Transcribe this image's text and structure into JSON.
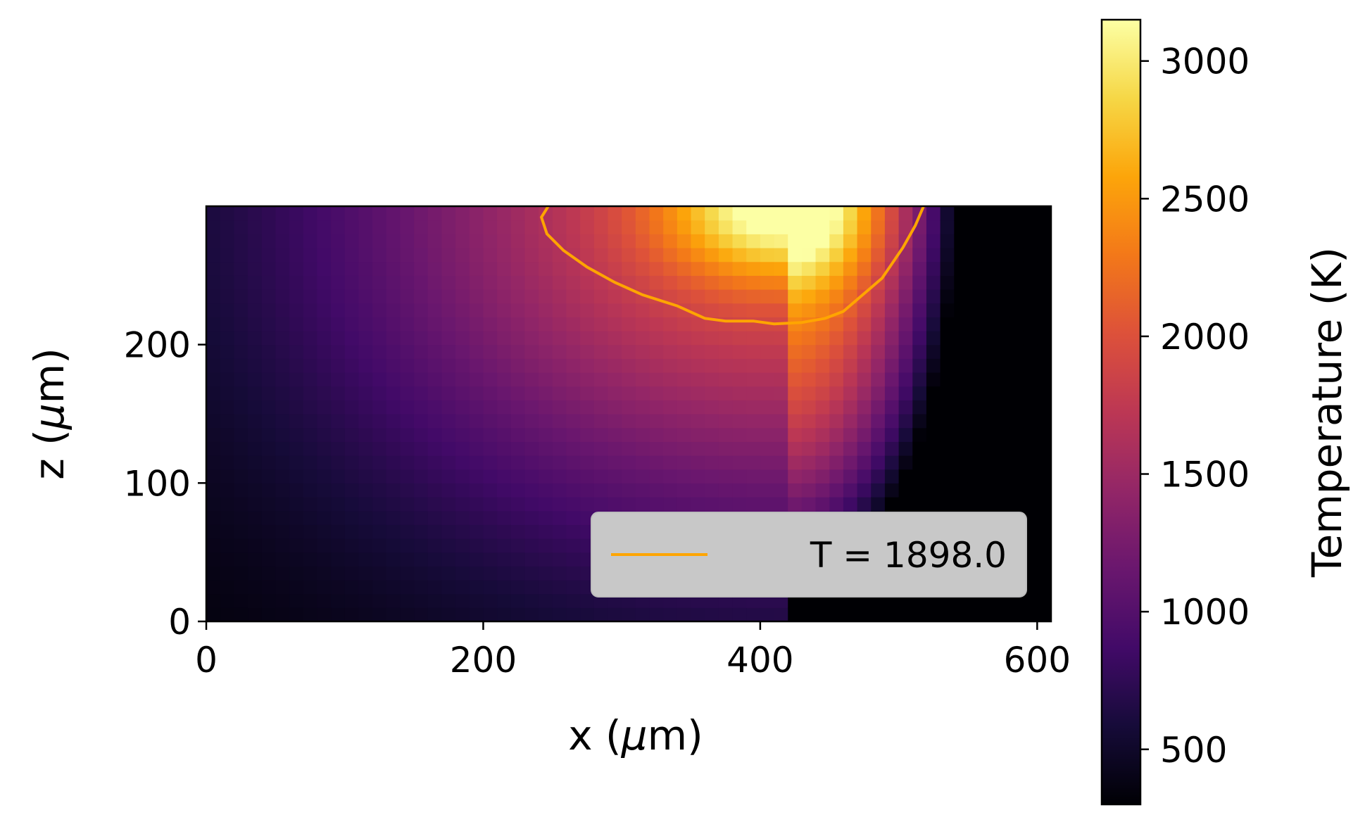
{
  "chart_data": {
    "type": "heatmap",
    "title": "",
    "xlabel_prefix": "x (",
    "xlabel_mu": "μ",
    "xlabel_suffix": "m)",
    "ylabel_prefix": "z (",
    "ylabel_mu": "μ",
    "ylabel_suffix": "m)",
    "xlim": [
      0,
      610
    ],
    "ylim": [
      0,
      300
    ],
    "x_ticks": [
      0,
      200,
      400,
      600
    ],
    "x_tick_labels": [
      "0",
      "200",
      "400",
      "600"
    ],
    "y_ticks": [
      0,
      100,
      200
    ],
    "y_tick_labels": [
      "0",
      "100",
      "200"
    ],
    "colormap": "inferno",
    "colorbar": {
      "label": "Temperature (K)",
      "range": [
        300,
        3150
      ],
      "ticks": [
        500,
        1000,
        1500,
        2000,
        2500,
        3000
      ],
      "tick_labels": [
        "500",
        "1000",
        "1500",
        "2000",
        "2500",
        "3000"
      ]
    },
    "temperature_field": {
      "ambient_K": 300,
      "peak_K": 3150,
      "hot_spot_center_x": 415,
      "hot_spot_center_z": 300
    },
    "contour": {
      "level": 1898.0,
      "color": "#ffa500",
      "points": [
        [
          247,
          300
        ],
        [
          242,
          292
        ],
        [
          246,
          280
        ],
        [
          258,
          268
        ],
        [
          275,
          256
        ],
        [
          295,
          245
        ],
        [
          315,
          236
        ],
        [
          340,
          228
        ],
        [
          360,
          219
        ],
        [
          375,
          217
        ],
        [
          395,
          217
        ],
        [
          410,
          215
        ],
        [
          430,
          216
        ],
        [
          447,
          219
        ],
        [
          460,
          224
        ],
        [
          474,
          236
        ],
        [
          488,
          248
        ],
        [
          503,
          270
        ],
        [
          512,
          286
        ],
        [
          518,
          300
        ]
      ]
    },
    "legend": {
      "label": "T = 1898.0",
      "position": "lower right",
      "background": "#c8c8c8"
    }
  }
}
